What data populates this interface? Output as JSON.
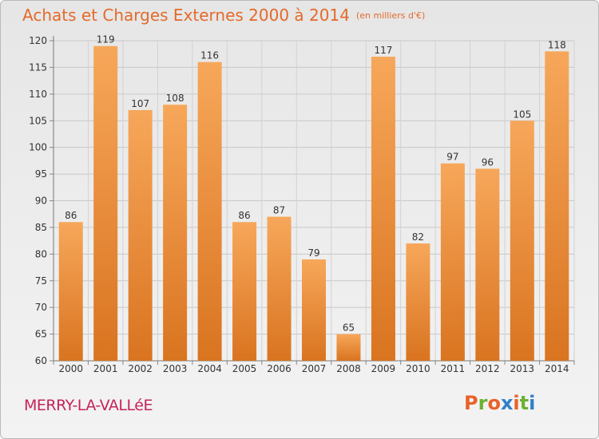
{
  "header": {
    "title": "Achats et Charges Externes 2000 à 2014",
    "unit": "(en milliers d'€)"
  },
  "footer": {
    "commune": "MERRY-LA-VALLéE",
    "logo_text": "Proxiti"
  },
  "colors": {
    "title": "#e36a2a",
    "commune": "#c5235c",
    "bar_light": "#f7a75a",
    "bar_dark": "#d97420",
    "logo_letters": [
      "#e8622a",
      "#6cb132",
      "#e8622a",
      "#2f7fc8",
      "#e8622a",
      "#6cb132",
      "#2f7fc8"
    ]
  },
  "chart_data": {
    "type": "bar",
    "title": "Achats et Charges Externes 2000 à 2014",
    "categories": [
      "2000",
      "2001",
      "2002",
      "2003",
      "2004",
      "2005",
      "2006",
      "2007",
      "2008",
      "2009",
      "2010",
      "2011",
      "2012",
      "2013",
      "2014"
    ],
    "values": [
      86,
      119,
      107,
      108,
      116,
      86,
      87,
      79,
      65,
      117,
      82,
      97,
      96,
      105,
      118
    ],
    "ylim": [
      60,
      120
    ],
    "yticks": [
      60,
      65,
      70,
      75,
      80,
      85,
      90,
      95,
      100,
      105,
      110,
      115,
      120
    ],
    "grid": true,
    "xlabel": "",
    "ylabel": ""
  }
}
